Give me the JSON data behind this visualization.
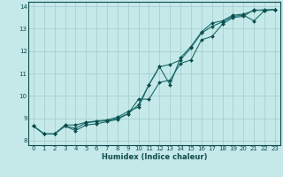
{
  "xlabel": "Humidex (Indice chaleur)",
  "xlim": [
    -0.5,
    23.5
  ],
  "ylim": [
    7.8,
    14.2
  ],
  "xticks": [
    0,
    1,
    2,
    3,
    4,
    5,
    6,
    7,
    8,
    9,
    10,
    11,
    12,
    13,
    14,
    15,
    16,
    17,
    18,
    19,
    20,
    21,
    22,
    23
  ],
  "yticks": [
    8,
    9,
    10,
    11,
    12,
    13,
    14
  ],
  "bg_color": "#c5e8e8",
  "grid_color": "#a8d0d0",
  "line_color": "#1a6b6b",
  "marker_color": "#0d4d4d",
  "x": [
    0,
    1,
    2,
    3,
    4,
    5,
    6,
    7,
    8,
    9,
    10,
    11,
    12,
    13,
    14,
    15,
    16,
    17,
    18,
    19,
    20,
    21,
    22,
    23
  ],
  "y_line1": [
    8.65,
    8.3,
    8.3,
    8.65,
    8.55,
    8.8,
    8.85,
    8.9,
    9.0,
    9.2,
    9.6,
    10.5,
    11.3,
    11.4,
    11.6,
    12.15,
    12.8,
    13.1,
    13.3,
    13.55,
    13.6,
    13.35,
    13.8,
    13.85
  ],
  "y_line2": [
    8.65,
    8.3,
    8.3,
    8.65,
    8.45,
    8.7,
    8.75,
    8.85,
    8.95,
    9.2,
    9.85,
    9.85,
    10.6,
    10.7,
    11.45,
    11.6,
    12.5,
    12.65,
    13.2,
    13.5,
    13.55,
    13.85,
    13.8,
    13.85
  ],
  "y_line3": [
    8.65,
    8.3,
    8.3,
    8.7,
    8.7,
    8.82,
    8.88,
    8.92,
    9.05,
    9.3,
    9.5,
    10.5,
    11.3,
    10.5,
    11.7,
    12.2,
    12.85,
    13.25,
    13.35,
    13.6,
    13.65,
    13.8,
    13.85,
    13.85
  ]
}
